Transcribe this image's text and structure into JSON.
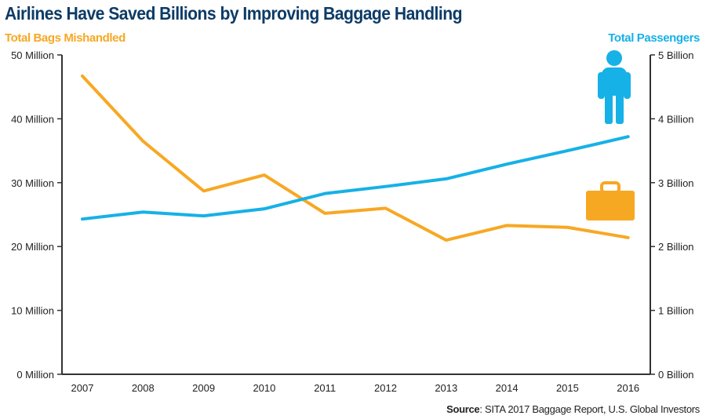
{
  "title": "Airlines Have Saved Billions by Improving Baggage Handling",
  "source_label": "Source",
  "source_text": ": SITA 2017 Baggage Report, U.S. Global Investors",
  "colors": {
    "title": "#0d3b66",
    "bags": "#f7a823",
    "passengers": "#16b1e6"
  },
  "icons": [
    "person-icon",
    "briefcase-icon"
  ],
  "chart_data": {
    "type": "line",
    "title": "Airlines Have Saved Billions by Improving Baggage Handling",
    "x": [
      2007,
      2008,
      2009,
      2010,
      2011,
      2012,
      2013,
      2014,
      2015,
      2016
    ],
    "x_tick_labels": [
      "2007",
      "2008",
      "2009",
      "2010",
      "2011",
      "2012",
      "2013",
      "2014",
      "2015",
      "2016"
    ],
    "left_axis": {
      "label": "Total Bags Mishandled",
      "ylim": [
        0,
        50
      ],
      "unit": "Million",
      "ticks": [
        0,
        10,
        20,
        30,
        40,
        50
      ],
      "tick_labels": [
        "0 Million",
        "10 Million",
        "20 Million",
        "30 Million",
        "40 Million",
        "50 Million"
      ]
    },
    "right_axis": {
      "label": "Total Passengers",
      "ylim": [
        0,
        5
      ],
      "unit": "Billion",
      "ticks": [
        0,
        1,
        2,
        3,
        4,
        5
      ],
      "tick_labels": [
        "0 Billion",
        "1 Billion",
        "2 Billion",
        "3 Billion",
        "4 Billion",
        "5 Billion"
      ]
    },
    "series": [
      {
        "name": "Total Bags Mishandled",
        "axis": "left",
        "color": "#f7a823",
        "values": [
          46.7,
          36.5,
          28.7,
          31.2,
          25.2,
          26.0,
          21.0,
          23.3,
          23.0,
          21.4
        ]
      },
      {
        "name": "Total Passengers",
        "axis": "right",
        "color": "#16b1e6",
        "values": [
          2.43,
          2.54,
          2.48,
          2.59,
          2.83,
          2.94,
          3.06,
          3.29,
          3.5,
          3.72
        ]
      }
    ],
    "grid": false,
    "legend": "none"
  }
}
